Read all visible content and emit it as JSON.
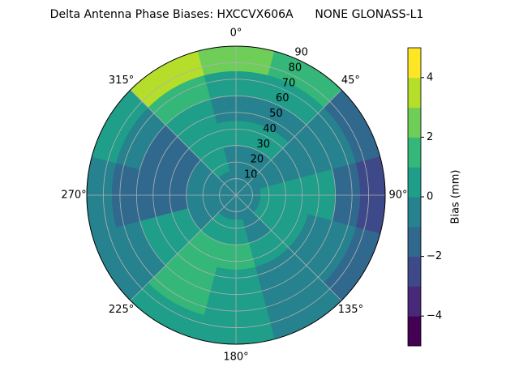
{
  "chart_data": {
    "type": "polar_contour",
    "title": "Delta Antenna Phase Biases: HXCCVX606A      NONE GLONASS-L1",
    "azimuth": [
      0,
      30,
      60,
      90,
      120,
      150,
      180,
      210,
      240,
      270,
      300,
      330
    ],
    "zenith_edges": [
      0,
      15,
      30,
      45,
      60,
      75,
      90
    ],
    "values": [
      [
        -0.5,
        -0.5,
        0.5,
        -0.5,
        0.5,
        2.5
      ],
      [
        -0.5,
        -0.5,
        0.5,
        -0.5,
        0.5,
        1.5
      ],
      [
        -0.5,
        -0.5,
        -0.5,
        -0.5,
        -0.5,
        -1.5
      ],
      [
        -0.5,
        0.5,
        0.5,
        0.5,
        -1.5,
        -2.5
      ],
      [
        -0.5,
        0.5,
        0.5,
        -0.5,
        -0.5,
        -1.5
      ],
      [
        -0.5,
        -0.5,
        0.5,
        -0.5,
        -0.5,
        -0.5
      ],
      [
        -0.5,
        0.5,
        1.5,
        0.5,
        0.5,
        0.5
      ],
      [
        -0.5,
        0.5,
        1.5,
        1.5,
        1.5,
        0.5
      ],
      [
        -0.5,
        -0.5,
        0.5,
        0.5,
        -0.5,
        -0.5
      ],
      [
        -0.5,
        -0.5,
        -1.5,
        -1.5,
        -1.5,
        -0.5
      ],
      [
        -0.5,
        -0.5,
        -1.5,
        -1.5,
        -0.5,
        0.5
      ],
      [
        -0.5,
        0.5,
        0.5,
        0.5,
        1.5,
        3.5
      ]
    ],
    "levels": [
      -5,
      -4,
      -3,
      -2,
      -1,
      0,
      1,
      2,
      3,
      4,
      5
    ],
    "level_colors": [
      "#440154",
      "#482878",
      "#3e4989",
      "#31688e",
      "#26828e",
      "#1f9e89",
      "#35b779",
      "#6ece58",
      "#b5de2b",
      "#fde725"
    ],
    "rlim": [
      0,
      90
    ],
    "rticks": [
      10,
      20,
      30,
      40,
      50,
      60,
      70,
      80,
      90
    ],
    "thetaticks": [
      {
        "value": 0,
        "label": "0°"
      },
      {
        "value": 45,
        "label": "45°"
      },
      {
        "value": 90,
        "label": "90°"
      },
      {
        "value": 135,
        "label": "135°"
      },
      {
        "value": 180,
        "label": "180°"
      },
      {
        "value": 225,
        "label": "225°"
      },
      {
        "value": 270,
        "label": "270°"
      },
      {
        "value": 315,
        "label": "315°"
      }
    ],
    "colorbar_label": "Bias (mm)",
    "colorbar_lim": [
      -5,
      5
    ],
    "colorbar_ticks": [
      {
        "value": -4,
        "label": "−4"
      },
      {
        "value": -2,
        "label": "−2"
      },
      0,
      2,
      4
    ],
    "grid": true
  }
}
